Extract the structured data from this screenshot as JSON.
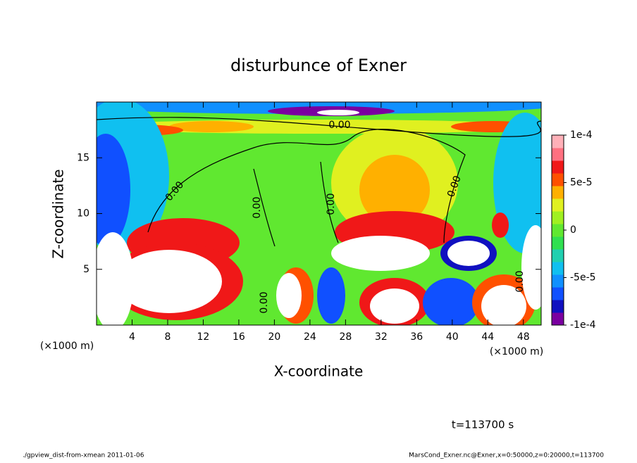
{
  "chart_data": {
    "type": "contour",
    "title": "disturbunce of Exner",
    "xlabel": "X-coordinate",
    "ylabel": "Z-coordinate",
    "xunit_left": "(×1000 m)",
    "xunit_right": "(×1000 m)",
    "xlim": [
      0,
      50
    ],
    "xticks": [
      4,
      8,
      12,
      16,
      20,
      24,
      28,
      32,
      36,
      40,
      44,
      48
    ],
    "ylim": [
      0,
      20
    ],
    "yticks": [
      5,
      10,
      15
    ],
    "contour_labels": [
      "0.00",
      "0.00",
      "0.00",
      "0.00",
      "0.00",
      "0.00",
      "0.00"
    ],
    "colorbar": {
      "lim": [
        -0.0001,
        0.0001
      ],
      "ticks": [
        {
          "value": 0.0001,
          "label": "1e-4"
        },
        {
          "value": 5e-05,
          "label": "5e-5"
        },
        0,
        {
          "value": -5e-05,
          "label": "-5e-5"
        },
        {
          "value": -0.0001,
          "label": "-1e-4"
        }
      ],
      "colors": [
        "#7a00a0",
        "#1010c0",
        "#1050ff",
        "#1090ff",
        "#10c0f0",
        "#20d0b0",
        "#30e050",
        "#60e830",
        "#a0f020",
        "#e0f020",
        "#ffb000",
        "#ff5000",
        "#f01818",
        "#ff7080",
        "#ffb0b8"
      ]
    },
    "annotation": "t=113700 s",
    "footer_left": "./gpview_dist-from-xmean  2011-01-06",
    "footer_right": "MarsCond_Exner.nc@Exner,x=0:50000,z=0:20000,t=113700"
  }
}
